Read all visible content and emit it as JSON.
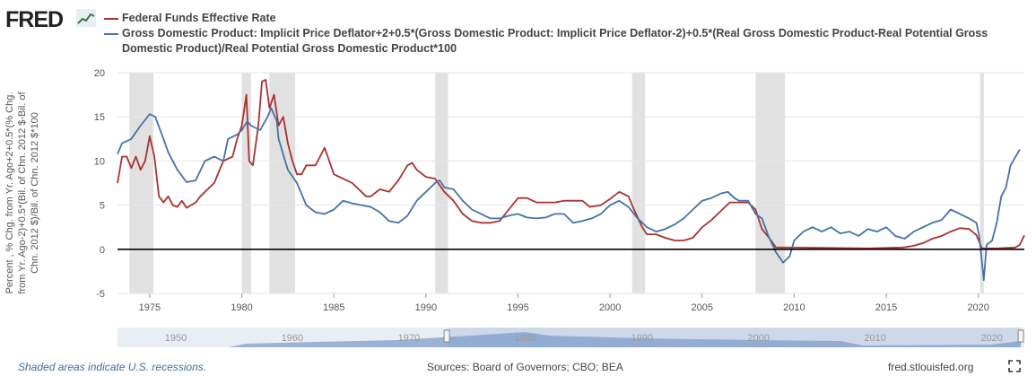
{
  "header": {
    "logo_text": "FRED"
  },
  "footer": {
    "recession_note": "Shaded areas indicate U.S. recessions.",
    "sources": "Sources: Board of Governors; CBO; BEA",
    "site": "fred.stlouisfed.org"
  },
  "navigator": {
    "labels": [
      "1950",
      "1960",
      "1970",
      "1980",
      "1990",
      "2000",
      "2010",
      "2020"
    ],
    "selected_range": [
      1973.25,
      2022.5
    ]
  },
  "chart_data": {
    "type": "line",
    "title": "",
    "xlabel": "",
    "ylabel": "Percent , % Chg. from Yr. Ago+2+0.5*(% Chg. from Yr. Ago-2)+0.5*(Bil. of Chn. 2012 $-Bil. of Chn. 2012 $)/Bil. of Chn. 2012 $*100",
    "xlim": [
      1973.25,
      2022.5
    ],
    "ylim": [
      -5,
      20
    ],
    "y_ticks": [
      -5,
      0,
      5,
      10,
      15,
      20
    ],
    "x_ticks": [
      1975,
      1980,
      1985,
      1990,
      1995,
      2000,
      2005,
      2010,
      2015,
      2020
    ],
    "grid": "horizontal",
    "zero_line": true,
    "recessions": [
      [
        1973.9,
        1975.2
      ],
      [
        1980.0,
        1980.5
      ],
      [
        1981.5,
        1982.9
      ],
      [
        1990.5,
        1991.2
      ],
      [
        2001.2,
        2001.9
      ],
      [
        2007.9,
        2009.5
      ],
      [
        2020.1,
        2020.3
      ]
    ],
    "series": [
      {
        "name": "Federal Funds Effective Rate",
        "color": "#a83232",
        "points": [
          [
            1973.25,
            7.5
          ],
          [
            1973.5,
            10.5
          ],
          [
            1973.75,
            10.5
          ],
          [
            1974.0,
            9.2
          ],
          [
            1974.25,
            10.5
          ],
          [
            1974.5,
            9.0
          ],
          [
            1974.75,
            10.0
          ],
          [
            1975.0,
            12.8
          ],
          [
            1975.25,
            10.5
          ],
          [
            1975.5,
            6.0
          ],
          [
            1975.75,
            5.3
          ],
          [
            1976.0,
            6.0
          ],
          [
            1976.25,
            5.0
          ],
          [
            1976.5,
            4.8
          ],
          [
            1976.75,
            5.5
          ],
          [
            1977.0,
            4.7
          ],
          [
            1977.5,
            5.3
          ],
          [
            1977.75,
            6.0
          ],
          [
            1978.0,
            6.5
          ],
          [
            1978.5,
            7.5
          ],
          [
            1979.0,
            10.0
          ],
          [
            1979.5,
            10.5
          ],
          [
            1979.75,
            12.5
          ],
          [
            1980.0,
            14.0
          ],
          [
            1980.25,
            17.5
          ],
          [
            1980.4,
            10.0
          ],
          [
            1980.6,
            9.5
          ],
          [
            1980.9,
            14.0
          ],
          [
            1981.1,
            19.0
          ],
          [
            1981.3,
            19.2
          ],
          [
            1981.5,
            16.0
          ],
          [
            1981.75,
            17.5
          ],
          [
            1982.0,
            14.0
          ],
          [
            1982.25,
            15.0
          ],
          [
            1982.5,
            12.0
          ],
          [
            1982.75,
            10.0
          ],
          [
            1983.0,
            8.5
          ],
          [
            1983.25,
            8.5
          ],
          [
            1983.5,
            9.5
          ],
          [
            1983.75,
            9.5
          ],
          [
            1984.0,
            9.5
          ],
          [
            1984.25,
            10.5
          ],
          [
            1984.5,
            11.5
          ],
          [
            1984.75,
            10.0
          ],
          [
            1985.0,
            8.5
          ],
          [
            1985.5,
            8.0
          ],
          [
            1986.0,
            7.5
          ],
          [
            1986.5,
            6.5
          ],
          [
            1986.75,
            6.0
          ],
          [
            1987.0,
            6.0
          ],
          [
            1987.5,
            6.8
          ],
          [
            1988.0,
            6.5
          ],
          [
            1988.5,
            7.8
          ],
          [
            1989.0,
            9.5
          ],
          [
            1989.25,
            9.8
          ],
          [
            1989.5,
            9.0
          ],
          [
            1990.0,
            8.2
          ],
          [
            1990.5,
            8.0
          ],
          [
            1991.0,
            6.5
          ],
          [
            1991.5,
            5.5
          ],
          [
            1992.0,
            4.0
          ],
          [
            1992.5,
            3.2
          ],
          [
            1993.0,
            3.0
          ],
          [
            1993.5,
            3.0
          ],
          [
            1994.0,
            3.2
          ],
          [
            1994.5,
            4.5
          ],
          [
            1995.0,
            5.8
          ],
          [
            1995.5,
            5.8
          ],
          [
            1996.0,
            5.3
          ],
          [
            1996.5,
            5.3
          ],
          [
            1997.0,
            5.3
          ],
          [
            1997.5,
            5.5
          ],
          [
            1998.0,
            5.5
          ],
          [
            1998.5,
            5.5
          ],
          [
            1998.9,
            4.8
          ],
          [
            1999.5,
            5.0
          ],
          [
            2000.0,
            5.7
          ],
          [
            2000.5,
            6.5
          ],
          [
            2001.0,
            6.0
          ],
          [
            2001.3,
            4.5
          ],
          [
            2001.75,
            2.5
          ],
          [
            2002.0,
            1.7
          ],
          [
            2002.5,
            1.7
          ],
          [
            2003.0,
            1.3
          ],
          [
            2003.5,
            1.0
          ],
          [
            2004.0,
            1.0
          ],
          [
            2004.5,
            1.3
          ],
          [
            2005.0,
            2.5
          ],
          [
            2005.5,
            3.3
          ],
          [
            2006.0,
            4.3
          ],
          [
            2006.5,
            5.3
          ],
          [
            2007.0,
            5.3
          ],
          [
            2007.5,
            5.3
          ],
          [
            2007.9,
            4.5
          ],
          [
            2008.25,
            2.3
          ],
          [
            2008.75,
            1.0
          ],
          [
            2009.0,
            0.2
          ],
          [
            2010.0,
            0.2
          ],
          [
            2012.0,
            0.15
          ],
          [
            2014.0,
            0.1
          ],
          [
            2015.9,
            0.2
          ],
          [
            2016.5,
            0.4
          ],
          [
            2017.0,
            0.7
          ],
          [
            2017.5,
            1.2
          ],
          [
            2018.0,
            1.5
          ],
          [
            2018.5,
            2.0
          ],
          [
            2019.0,
            2.4
          ],
          [
            2019.5,
            2.3
          ],
          [
            2019.9,
            1.6
          ],
          [
            2020.2,
            0.1
          ],
          [
            2021.0,
            0.1
          ],
          [
            2022.0,
            0.2
          ],
          [
            2022.25,
            0.5
          ],
          [
            2022.5,
            1.6
          ]
        ]
      },
      {
        "name": "Gross Domestic Product: Implicit Price Deflator+2+0.5*(Gross Domestic Product: Implicit Price Deflator-2)+0.5*(Real Gross Domestic Product-Real Potential Gross Domestic Product)/Real Potential Gross Domestic Product*100",
        "color": "#4572a7",
        "points": [
          [
            1973.25,
            10.8
          ],
          [
            1973.5,
            12.0
          ],
          [
            1974.0,
            12.5
          ],
          [
            1974.5,
            14.0
          ],
          [
            1975.0,
            15.3
          ],
          [
            1975.3,
            15.0
          ],
          [
            1975.75,
            12.5
          ],
          [
            1976.0,
            11.0
          ],
          [
            1976.5,
            9.0
          ],
          [
            1977.0,
            7.6
          ],
          [
            1977.5,
            7.8
          ],
          [
            1978.0,
            10.0
          ],
          [
            1978.5,
            10.5
          ],
          [
            1979.0,
            10.0
          ],
          [
            1979.25,
            12.5
          ],
          [
            1979.75,
            13.0
          ],
          [
            1980.0,
            13.5
          ],
          [
            1980.3,
            14.5
          ],
          [
            1980.5,
            14.0
          ],
          [
            1981.0,
            13.5
          ],
          [
            1981.4,
            15.0
          ],
          [
            1981.6,
            16.0
          ],
          [
            1981.9,
            14.5
          ],
          [
            1982.0,
            12.5
          ],
          [
            1982.5,
            9.0
          ],
          [
            1983.0,
            7.5
          ],
          [
            1983.5,
            5.0
          ],
          [
            1984.0,
            4.2
          ],
          [
            1984.5,
            4.0
          ],
          [
            1985.0,
            4.5
          ],
          [
            1985.5,
            5.5
          ],
          [
            1986.0,
            5.2
          ],
          [
            1986.5,
            5.0
          ],
          [
            1987.0,
            4.8
          ],
          [
            1987.5,
            4.2
          ],
          [
            1988.0,
            3.2
          ],
          [
            1988.5,
            3.0
          ],
          [
            1989.0,
            3.8
          ],
          [
            1989.5,
            5.5
          ],
          [
            1990.0,
            6.5
          ],
          [
            1990.5,
            7.5
          ],
          [
            1990.75,
            7.8
          ],
          [
            1991.0,
            7.0
          ],
          [
            1991.5,
            6.8
          ],
          [
            1992.0,
            5.5
          ],
          [
            1992.5,
            4.5
          ],
          [
            1993.0,
            4.0
          ],
          [
            1993.5,
            3.5
          ],
          [
            1994.0,
            3.5
          ],
          [
            1994.5,
            3.8
          ],
          [
            1995.0,
            4.0
          ],
          [
            1995.5,
            3.6
          ],
          [
            1996.0,
            3.5
          ],
          [
            1996.5,
            3.6
          ],
          [
            1997.0,
            4.0
          ],
          [
            1997.5,
            4.0
          ],
          [
            1998.0,
            3.0
          ],
          [
            1998.5,
            3.2
          ],
          [
            1999.0,
            3.5
          ],
          [
            1999.5,
            4.0
          ],
          [
            2000.0,
            5.0
          ],
          [
            2000.5,
            5.5
          ],
          [
            2001.0,
            4.8
          ],
          [
            2001.5,
            3.5
          ],
          [
            2002.0,
            2.5
          ],
          [
            2002.5,
            2.0
          ],
          [
            2003.0,
            2.3
          ],
          [
            2003.5,
            2.8
          ],
          [
            2004.0,
            3.5
          ],
          [
            2004.5,
            4.5
          ],
          [
            2005.0,
            5.5
          ],
          [
            2005.5,
            5.8
          ],
          [
            2006.0,
            6.3
          ],
          [
            2006.4,
            6.5
          ],
          [
            2006.75,
            5.8
          ],
          [
            2007.0,
            5.5
          ],
          [
            2007.5,
            5.5
          ],
          [
            2007.9,
            4.0
          ],
          [
            2008.25,
            3.5
          ],
          [
            2008.6,
            1.5
          ],
          [
            2009.0,
            -0.3
          ],
          [
            2009.4,
            -1.5
          ],
          [
            2009.75,
            -0.8
          ],
          [
            2010.0,
            1.0
          ],
          [
            2010.5,
            2.0
          ],
          [
            2011.0,
            2.5
          ],
          [
            2011.5,
            2.0
          ],
          [
            2012.0,
            2.5
          ],
          [
            2012.5,
            1.8
          ],
          [
            2013.0,
            2.0
          ],
          [
            2013.5,
            1.5
          ],
          [
            2014.0,
            2.3
          ],
          [
            2014.5,
            2.0
          ],
          [
            2015.0,
            2.5
          ],
          [
            2015.5,
            1.5
          ],
          [
            2016.0,
            1.2
          ],
          [
            2016.5,
            2.0
          ],
          [
            2017.0,
            2.5
          ],
          [
            2017.5,
            3.0
          ],
          [
            2018.0,
            3.3
          ],
          [
            2018.5,
            4.5
          ],
          [
            2019.0,
            4.0
          ],
          [
            2019.5,
            3.5
          ],
          [
            2019.9,
            3.0
          ],
          [
            2020.05,
            1.5
          ],
          [
            2020.3,
            -3.5
          ],
          [
            2020.45,
            0.5
          ],
          [
            2020.75,
            1.0
          ],
          [
            2021.0,
            3.0
          ],
          [
            2021.25,
            6.0
          ],
          [
            2021.5,
            7.0
          ],
          [
            2021.75,
            9.5
          ],
          [
            2022.25,
            11.3
          ]
        ]
      }
    ]
  }
}
